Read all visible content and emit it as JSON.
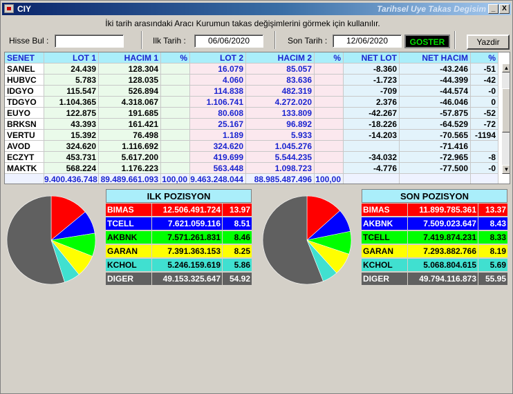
{
  "window": {
    "app_name": "CIY",
    "title": "Tarihsel Uye Takas Degisim",
    "min_label": "_",
    "close_label": "X"
  },
  "info_text": "İki tarih arasındaki  Aracı Kurumun takas değişimlerini görmek için kullanılır.",
  "controls": {
    "hisse_label": "Hisse Bul :",
    "hisse_value": "",
    "ilk_tarih_label": "Ilk Tarih :",
    "ilk_tarih_value": "06/06/2020",
    "son_tarih_label": "Son Tarih :",
    "son_tarih_value": "12/06/2020",
    "goster_label": "GOSTER",
    "yazdir_label": "Yazdir"
  },
  "table": {
    "headers": [
      "SENET",
      "LOT 1",
      "HACIM 1",
      "%",
      "LOT 2",
      "HACIM 2",
      "%",
      "NET LOT",
      "NET HACIM",
      "%"
    ],
    "rows": [
      [
        "SANEL",
        "24.439",
        "128.304",
        "",
        "16.079",
        "85.057",
        "",
        "-8.360",
        "-43.246",
        "-51"
      ],
      [
        "HUBVC",
        "5.783",
        "128.035",
        "",
        "4.060",
        "83.636",
        "",
        "-1.723",
        "-44.399",
        "-42"
      ],
      [
        "IDGYO",
        "115.547",
        "526.894",
        "",
        "114.838",
        "482.319",
        "",
        "-709",
        "-44.574",
        "-0"
      ],
      [
        "TDGYO",
        "1.104.365",
        "4.318.067",
        "",
        "1.106.741",
        "4.272.020",
        "",
        "2.376",
        "-46.046",
        "0"
      ],
      [
        "EUYO",
        "122.875",
        "191.685",
        "",
        "80.608",
        "133.809",
        "",
        "-42.267",
        "-57.875",
        "-52"
      ],
      [
        "BRKSN",
        "43.393",
        "161.421",
        "",
        "25.167",
        "96.892",
        "",
        "-18.226",
        "-64.529",
        "-72"
      ],
      [
        "VERTU",
        "15.392",
        "76.498",
        "",
        "1.189",
        "5.933",
        "",
        "-14.203",
        "-70.565",
        "-1194"
      ],
      [
        "AVOD",
        "324.620",
        "1.116.692",
        "",
        "324.620",
        "1.045.276",
        "",
        "",
        "-71.416",
        ""
      ],
      [
        "ECZYT",
        "453.731",
        "5.617.200",
        "",
        "419.699",
        "5.544.235",
        "",
        "-34.032",
        "-72.965",
        "-8"
      ],
      [
        "MAKTK",
        "568.224",
        "1.176.223",
        "",
        "563.448",
        "1.098.723",
        "",
        "-4.776",
        "-77.500",
        "-0"
      ]
    ],
    "totals": [
      "",
      "9.400.436.748",
      "89.489.661.093",
      "100,00",
      "9.463.248.044",
      "88.985.487.496",
      "100,00",
      "",
      "",
      ""
    ]
  },
  "ilk_pozisyon": {
    "title": "ILK POZISYON",
    "items": [
      {
        "name": "BIMAS",
        "value": "12.506.491.724",
        "pct": "13.97",
        "share": 13.97,
        "color": "#ff0000",
        "text": "#ffffff"
      },
      {
        "name": "TCELL",
        "value": "7.621.059.116",
        "pct": "8.51",
        "share": 8.51,
        "color": "#0000ff",
        "text": "#ffffff"
      },
      {
        "name": "AKBNK",
        "value": "7.571.261.831",
        "pct": "8.46",
        "share": 8.46,
        "color": "#00ff00",
        "text": "#000000"
      },
      {
        "name": "GARAN",
        "value": "7.391.363.153",
        "pct": "8.25",
        "share": 8.25,
        "color": "#ffff00",
        "text": "#000000"
      },
      {
        "name": "KCHOL",
        "value": "5.246.159.619",
        "pct": "5.86",
        "share": 5.86,
        "color": "#40e0d0",
        "text": "#000000"
      },
      {
        "name": "DIGER",
        "value": "49.153.325.647",
        "pct": "54.92",
        "share": 54.92,
        "color": "#606060",
        "text": "#ffffff"
      }
    ]
  },
  "son_pozisyon": {
    "title": "SON POZISYON",
    "items": [
      {
        "name": "BIMAS",
        "value": "11.899.785.361",
        "pct": "13.37",
        "share": 13.37,
        "color": "#ff0000",
        "text": "#ffffff"
      },
      {
        "name": "AKBNK",
        "value": "7.509.023.647",
        "pct": "8.43",
        "share": 8.43,
        "color": "#0000ff",
        "text": "#ffffff"
      },
      {
        "name": "TCELL",
        "value": "7.419.874.231",
        "pct": "8.33",
        "share": 8.33,
        "color": "#00ff00",
        "text": "#000000"
      },
      {
        "name": "GARAN",
        "value": "7.293.882.766",
        "pct": "8.19",
        "share": 8.19,
        "color": "#ffff00",
        "text": "#000000"
      },
      {
        "name": "KCHOL",
        "value": "5.068.804.615",
        "pct": "5.69",
        "share": 5.69,
        "color": "#40e0d0",
        "text": "#000000"
      },
      {
        "name": "DIGER",
        "value": "49.794.116.873",
        "pct": "55.95",
        "share": 55.95,
        "color": "#606060",
        "text": "#ffffff"
      }
    ]
  }
}
